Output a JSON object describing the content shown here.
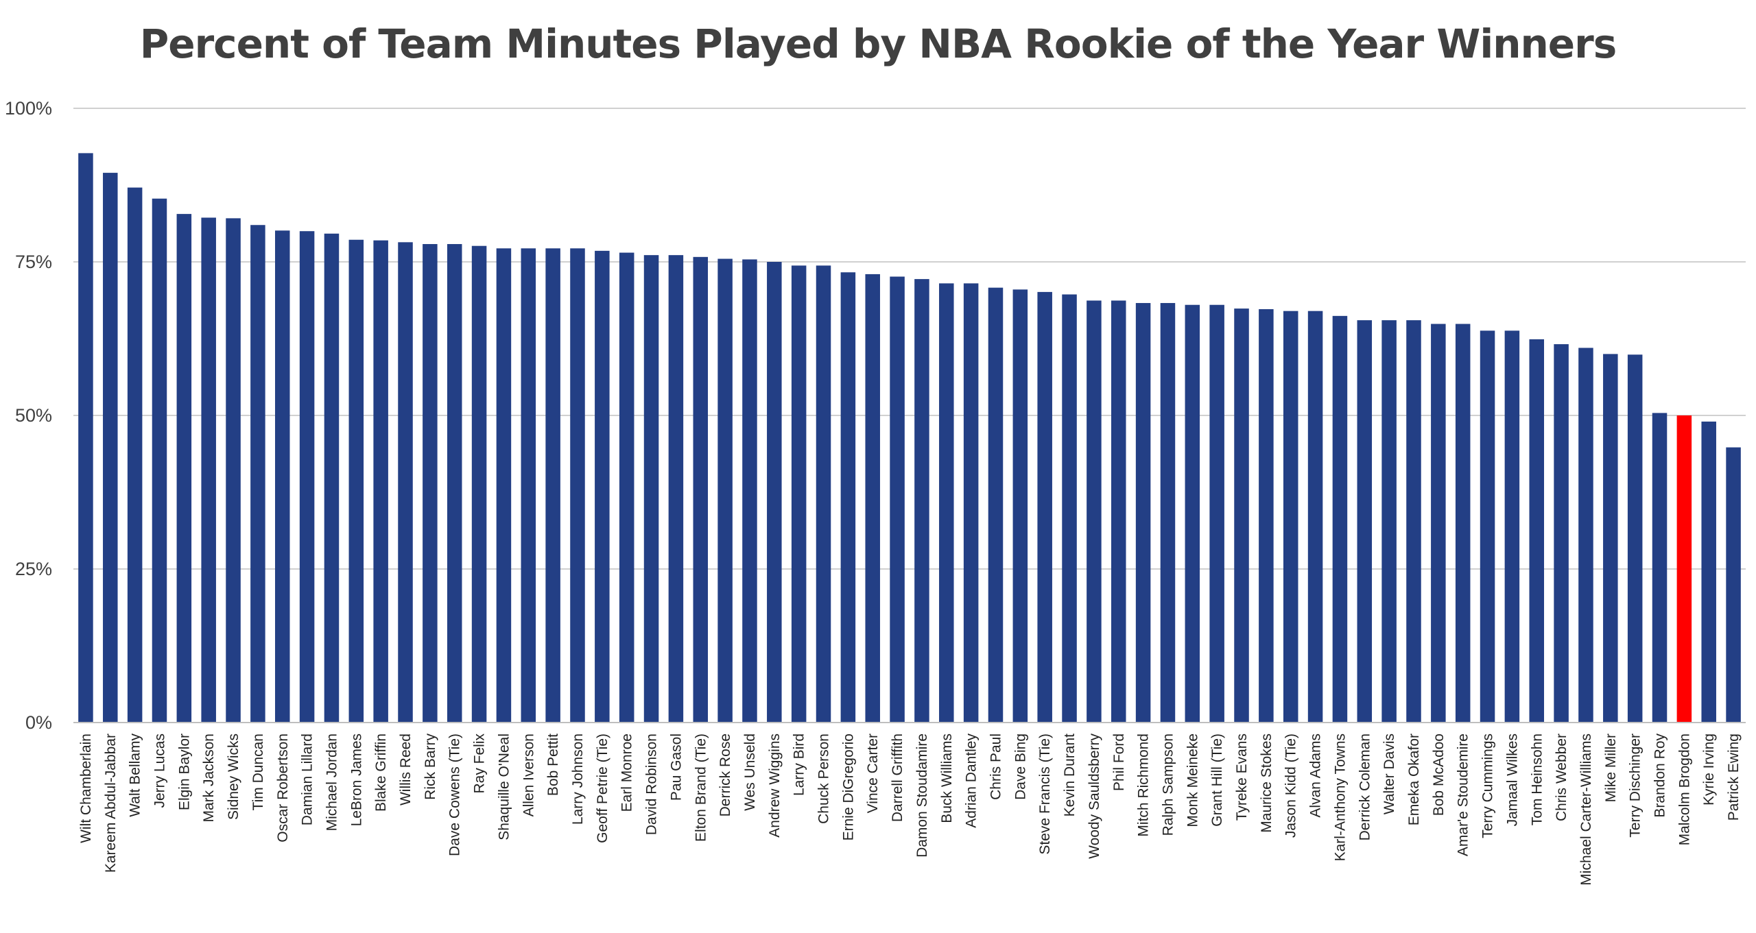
{
  "chart_data": {
    "type": "bar",
    "title": "Percent of Team Minutes Played by NBA Rookie of the Year Winners",
    "xlabel": "",
    "ylabel": "",
    "ylim": [
      0,
      100
    ],
    "yticks": [
      "0%",
      "25%",
      "50%",
      "75%",
      "100%"
    ],
    "grid": true,
    "bar_color": "#233f85",
    "highlight_color": "#ff0000",
    "highlight_category": "Malcolm Brogdon",
    "categories": [
      "Wilt Chamberlain",
      "Kareem Abdul-Jabbar",
      "Walt Bellamy",
      "Jerry Lucas",
      "Elgin Baylor",
      "Mark Jackson",
      "Sidney Wicks",
      "Tim Duncan",
      "Oscar Robertson",
      "Damian Lillard",
      "Michael Jordan",
      "LeBron James",
      "Blake Griffin",
      "Willis Reed",
      "Rick Barry",
      "Dave Cowens (Tie)",
      "Ray Felix",
      "Shaquille O'Neal",
      "Allen Iverson",
      "Bob Pettit",
      "Larry Johnson",
      "Geoff Petrie (Tie)",
      "Earl Monroe",
      "David Robinson",
      "Pau Gasol",
      "Elton Brand (Tie)",
      "Derrick Rose",
      "Wes Unseld",
      "Andrew Wiggins",
      "Larry Bird",
      "Chuck Person",
      "Ernie DiGregorio",
      "Vince Carter",
      "Darrell Griffith",
      "Damon Stoudamire",
      "Buck Williams",
      "Adrian Dantley",
      "Chris Paul",
      "Dave Bing",
      "Steve Francis (Tie)",
      "Kevin Durant",
      "Woody Sauldsberry",
      "Phil Ford",
      "Mitch Richmond",
      "Ralph Sampson",
      "Monk Meineke",
      "Grant Hill (Tie)",
      "Tyreke Evans",
      "Maurice Stokes",
      "Jason Kidd (Tie)",
      "Alvan Adams",
      "Karl-Anthony Towns",
      "Derrick Coleman",
      "Walter Davis",
      "Emeka Okafor",
      "Bob McAdoo",
      "Amar'e Stoudemire",
      "Terry Cummings",
      "Jamaal Wilkes",
      "Tom Heinsohn",
      "Chris Webber",
      "Michael Carter-Williams",
      "Mike Miller",
      "Terry Dischinger",
      "Brandon Roy",
      "Malcolm Brogdon",
      "Kyrie Irving",
      "Patrick Ewing"
    ],
    "values": [
      92.7,
      89.5,
      87.1,
      85.3,
      82.8,
      82.2,
      82.1,
      81.0,
      80.1,
      80.0,
      79.6,
      78.6,
      78.5,
      78.2,
      77.9,
      77.9,
      77.6,
      77.2,
      77.2,
      77.2,
      77.2,
      76.8,
      76.5,
      76.1,
      76.1,
      75.8,
      75.5,
      75.4,
      75.0,
      74.4,
      74.4,
      73.3,
      73.0,
      72.6,
      72.2,
      71.5,
      71.5,
      70.8,
      70.5,
      70.1,
      69.7,
      68.7,
      68.7,
      68.3,
      68.3,
      68.0,
      68.0,
      67.4,
      67.3,
      67.0,
      67.0,
      66.2,
      65.5,
      65.5,
      65.5,
      64.9,
      64.9,
      63.8,
      63.8,
      62.4,
      61.6,
      61.0,
      60.0,
      59.9,
      50.4,
      50.0,
      49.0,
      44.8
    ]
  }
}
